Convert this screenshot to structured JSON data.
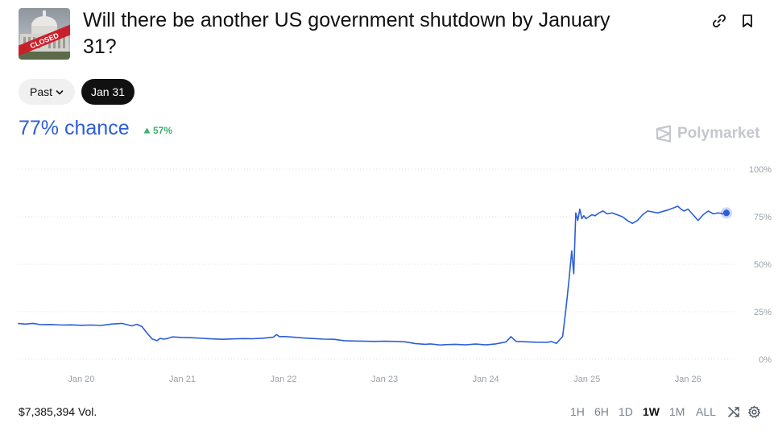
{
  "header": {
    "thumbnail_caption": "CLOSED",
    "title": "Will there be another US government shutdown by January 31?"
  },
  "date_pills": {
    "past_label": "Past",
    "active_label": "Jan 31"
  },
  "summary": {
    "chance": "77% chance",
    "change": "57%",
    "brand": "Polymarket",
    "chance_color": "#2b5ed8",
    "change_color": "#3ab36b"
  },
  "footer": {
    "volume": "$7,385,394 Vol.",
    "ranges": [
      "1H",
      "6H",
      "1D",
      "1W",
      "1M",
      "ALL"
    ],
    "selected_range": "1W"
  },
  "chart_data": {
    "type": "line",
    "title": "",
    "xlabel": "",
    "ylabel": "",
    "ylim": [
      0,
      100
    ],
    "y_ticks": [
      "100%",
      "75%",
      "50%",
      "25%",
      "0%"
    ],
    "y_tick_values": [
      100,
      75,
      50,
      25,
      0
    ],
    "x_ticks": [
      "Jan 20",
      "Jan 21",
      "Jan 22",
      "Jan 23",
      "Jan 24",
      "Jan 25",
      "Jan 26"
    ],
    "x_tick_values": [
      0,
      1,
      2,
      3,
      4,
      5,
      6
    ],
    "xlim": [
      -0.62,
      6.38
    ],
    "grid": true,
    "line_color": "#2b5ed8",
    "series": [
      {
        "values_x": [
          -0.62,
          -0.55,
          -0.48,
          -0.4,
          -0.3,
          -0.2,
          -0.1,
          0.0,
          0.1,
          0.2,
          0.3,
          0.4,
          0.5,
          0.55,
          0.6,
          0.65,
          0.7,
          0.75,
          0.78,
          0.81,
          0.85,
          0.9,
          1.0,
          1.1,
          1.2,
          1.3,
          1.4,
          1.5,
          1.6,
          1.7,
          1.8,
          1.9,
          1.93,
          1.96,
          2.0,
          2.1,
          2.2,
          2.3,
          2.4,
          2.5,
          2.6,
          2.7,
          2.8,
          2.9,
          3.0,
          3.1,
          3.2,
          3.3,
          3.4,
          3.45,
          3.5,
          3.55,
          3.6,
          3.7,
          3.8,
          3.9,
          4.0,
          4.1,
          4.15,
          4.2,
          4.25,
          4.3,
          4.4,
          4.5,
          4.6,
          4.65,
          4.7,
          4.73,
          4.76,
          4.79,
          4.82,
          4.85,
          4.87,
          4.89,
          4.91,
          4.93,
          4.95,
          4.97,
          4.99,
          5.02,
          5.05,
          5.08,
          5.12,
          5.16,
          5.2,
          5.25,
          5.3,
          5.35,
          5.4,
          5.45,
          5.5,
          5.55,
          5.6,
          5.7,
          5.8,
          5.9,
          5.93,
          5.96,
          6.0,
          6.05,
          6.1,
          6.15,
          6.2,
          6.25,
          6.3,
          6.35,
          6.38
        ],
        "values_y": [
          18.8,
          18.5,
          18.9,
          18.2,
          18.3,
          18.0,
          18.1,
          17.9,
          18.0,
          17.8,
          18.5,
          18.9,
          17.6,
          18.4,
          17.2,
          13.8,
          10.7,
          9.8,
          11.0,
          10.6,
          10.9,
          11.8,
          11.5,
          11.3,
          11.0,
          10.7,
          10.5,
          10.7,
          10.9,
          10.8,
          11.1,
          11.6,
          13.0,
          11.9,
          12.0,
          11.6,
          11.2,
          10.9,
          10.6,
          10.5,
          9.8,
          9.6,
          9.5,
          9.4,
          9.5,
          9.4,
          9.2,
          8.3,
          7.9,
          8.1,
          7.8,
          7.5,
          7.7,
          7.9,
          7.6,
          8.0,
          7.6,
          8.1,
          8.6,
          9.1,
          11.9,
          9.4,
          9.2,
          9.0,
          8.9,
          9.3,
          8.4,
          10.2,
          12.0,
          25.0,
          40.0,
          57.0,
          45.0,
          77.0,
          73.0,
          79.0,
          74.0,
          75.5,
          74.0,
          75.0,
          76.0,
          75.5,
          77.0,
          78.0,
          76.5,
          77.0,
          76.0,
          75.0,
          73.0,
          71.5,
          73.0,
          76.0,
          78.0,
          77.0,
          78.5,
          80.5,
          79.0,
          78.0,
          79.0,
          76.0,
          73.0,
          76.0,
          78.0,
          76.5,
          77.0,
          76.5,
          77.0
        ]
      }
    ]
  }
}
